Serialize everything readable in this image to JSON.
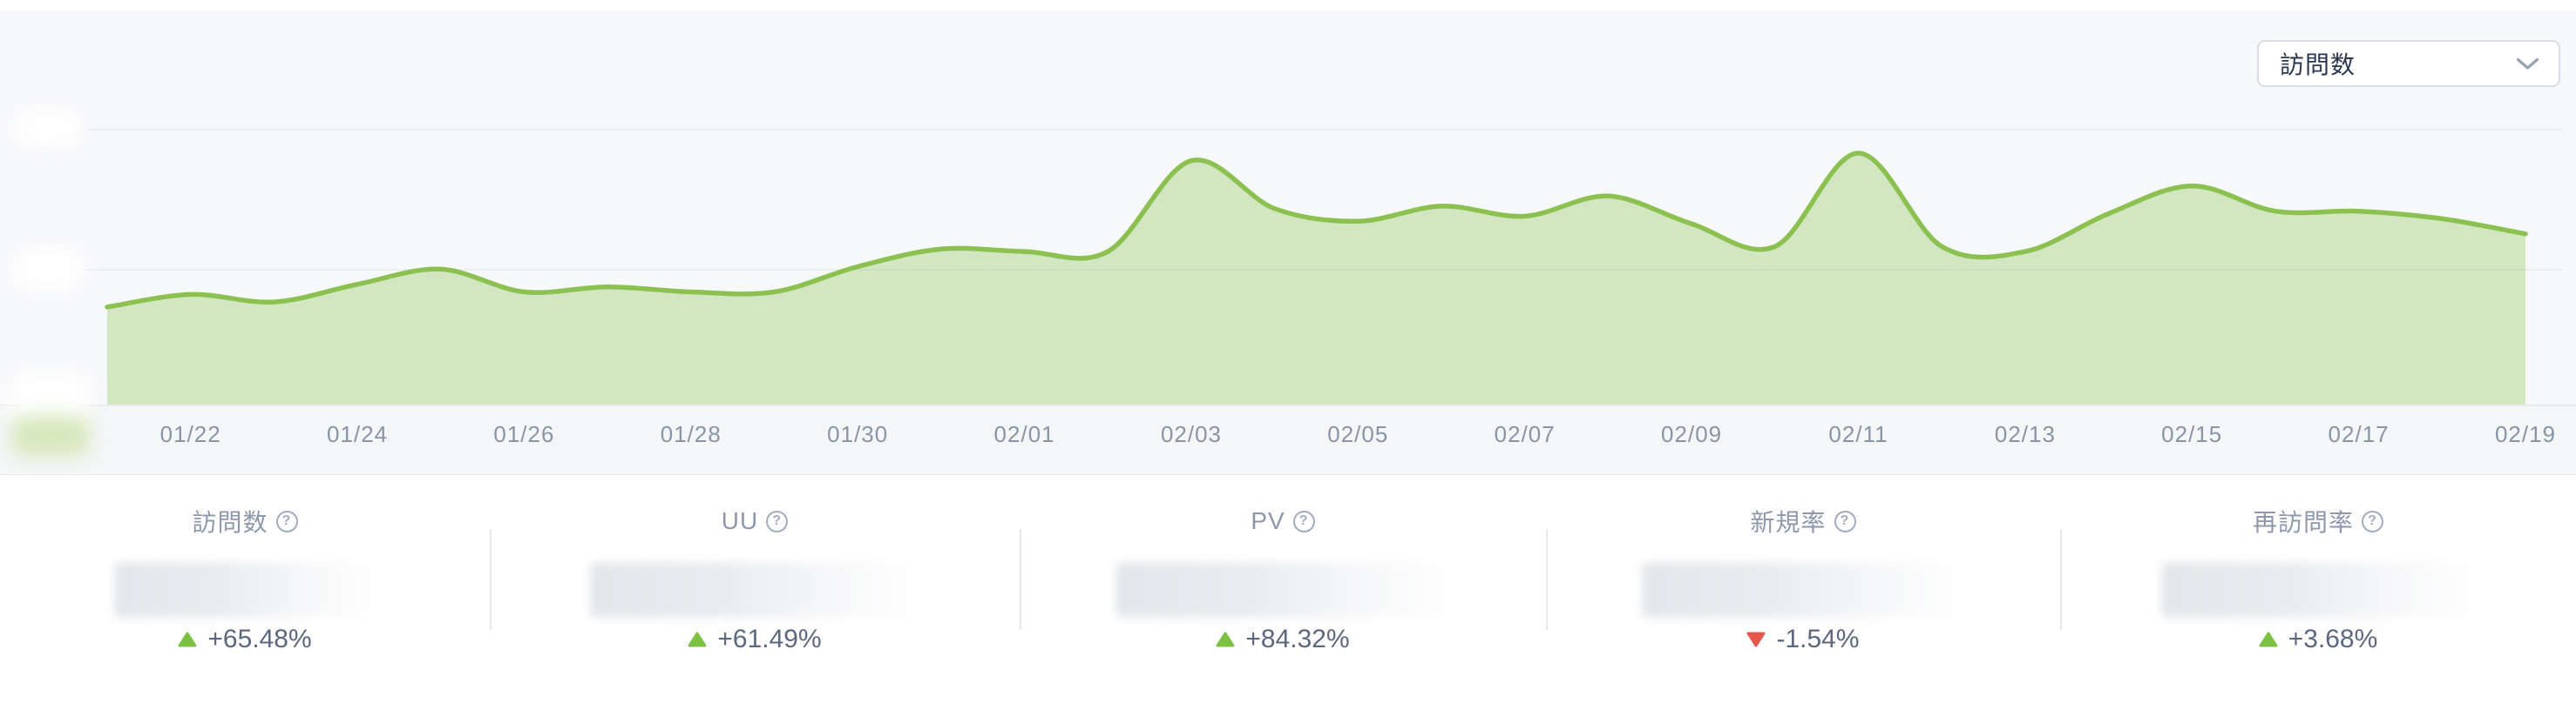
{
  "header": {
    "metric_selector": {
      "selected": "訪問数",
      "icon": "chevron-down-icon"
    }
  },
  "chart_data": {
    "type": "area",
    "title": "",
    "xlabel": "",
    "ylabel": "",
    "x": [
      "01/21",
      "01/22",
      "01/23",
      "01/24",
      "01/25",
      "01/26",
      "01/27",
      "01/28",
      "01/29",
      "01/30",
      "01/31",
      "02/01",
      "02/02",
      "02/03",
      "02/04",
      "02/05",
      "02/06",
      "02/07",
      "02/08",
      "02/09",
      "02/10",
      "02/11",
      "02/12",
      "02/13",
      "02/14",
      "02/15",
      "02/16",
      "02/17",
      "02/18",
      "02/19"
    ],
    "x_tick_labels": [
      "01/22",
      "01/24",
      "01/26",
      "01/28",
      "01/30",
      "02/01",
      "02/03",
      "02/05",
      "02/07",
      "02/09",
      "02/11",
      "02/13",
      "02/15",
      "02/17",
      "02/19"
    ],
    "series": [
      {
        "name": "訪問数",
        "values": [
          39,
          44,
          41,
          48,
          54,
          45,
          47,
          45,
          45,
          55,
          62,
          61,
          61,
          97,
          78,
          73,
          79,
          75,
          83,
          72,
          63,
          100,
          63,
          61,
          76,
          87,
          77,
          77,
          74,
          68
        ]
      }
    ],
    "value_scale_note": "relative 0-100; y-axis tick labels are blurred in the screenshot",
    "ylim": [
      0,
      112
    ],
    "grid": true,
    "legend_position": "none",
    "smooth": true,
    "line_color": "#8cc152",
    "fill_color": "rgba(141,195,82,0.33)",
    "gridline_color": "#eceef1",
    "axis_label_color": "#8a94a7"
  },
  "stats": {
    "values_blurred": true,
    "up_color": "#7cc142",
    "down_color": "#e4574c",
    "items": [
      {
        "label": "訪問数",
        "change": "+65.48%",
        "direction": "up"
      },
      {
        "label": "UU",
        "change": "+61.49%",
        "direction": "up"
      },
      {
        "label": "PV",
        "change": "+84.32%",
        "direction": "up"
      },
      {
        "label": "新規率",
        "change": "-1.54%",
        "direction": "down"
      },
      {
        "label": "再訪問率",
        "change": "+3.68%",
        "direction": "up"
      }
    ]
  }
}
